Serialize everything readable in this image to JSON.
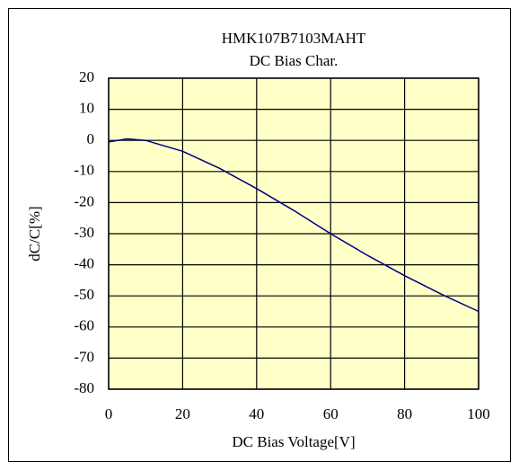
{
  "chart_data": {
    "type": "line",
    "title": "HMK107B7103MAHT",
    "subtitle": "DC Bias Char.",
    "x_label": "DC Bias Voltage[V]",
    "y_label": "dC/C[%]",
    "x": [
      0,
      5,
      10,
      20,
      30,
      40,
      50,
      60,
      70,
      80,
      90,
      100
    ],
    "series": [
      {
        "name": "HMK107B7103MAHT",
        "color": "#000080",
        "values": [
          -0.5,
          0.5,
          0,
          -3.5,
          -9,
          -15.5,
          -22.5,
          -30,
          -37,
          -43.5,
          -49.5,
          -55
        ]
      }
    ],
    "xlim": [
      0,
      100
    ],
    "xticks": [
      0,
      20,
      40,
      60,
      80,
      100
    ],
    "ylim": [
      -80,
      20
    ],
    "yticks": [
      20,
      10,
      0,
      -10,
      -20,
      -30,
      -40,
      -50,
      -60,
      -70,
      -80
    ],
    "grid": true,
    "plot_background": "#ffffc8"
  }
}
